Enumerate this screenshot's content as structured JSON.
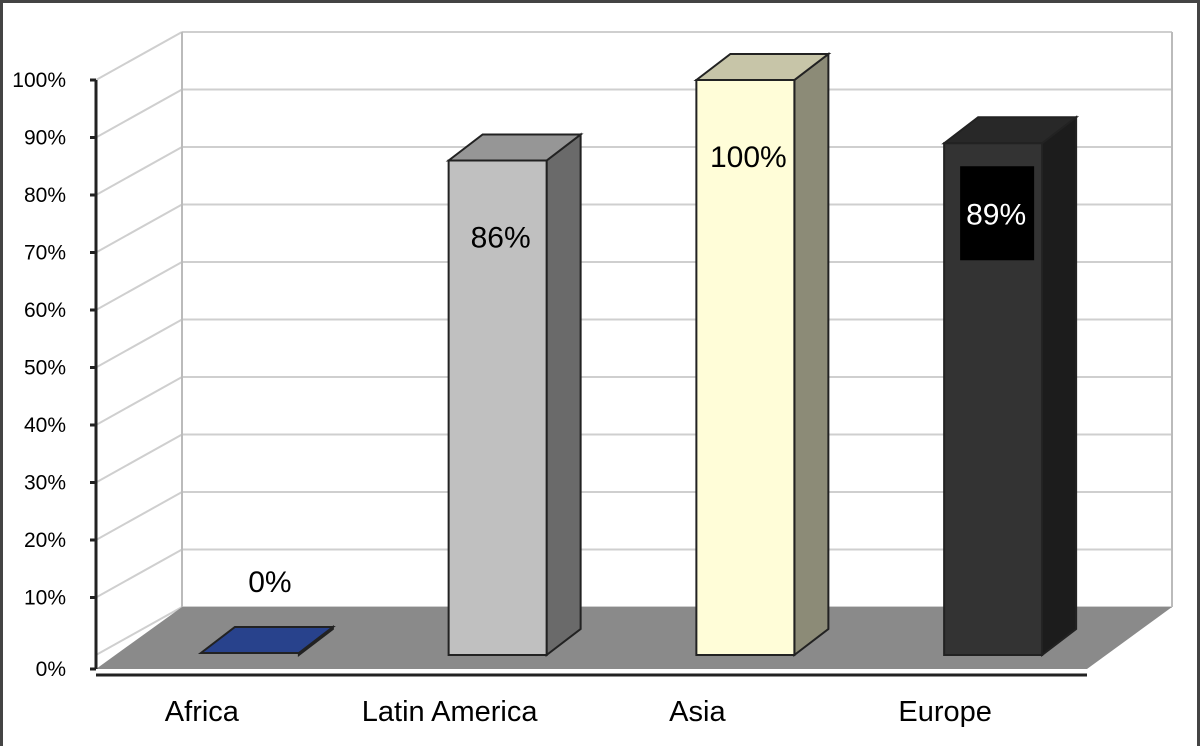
{
  "chart_data": {
    "type": "bar",
    "style": "3d",
    "categories": [
      "Africa",
      "Latin America",
      "Asia",
      "Europe"
    ],
    "values": [
      0,
      86,
      100,
      89
    ],
    "data_labels": [
      "0%",
      "86%",
      "100%",
      "89%"
    ],
    "y_ticks": [
      "0%",
      "10%",
      "20%",
      "30%",
      "40%",
      "50%",
      "60%",
      "70%",
      "80%",
      "90%",
      "100%"
    ],
    "ylim": [
      0,
      100
    ],
    "grid": true,
    "legend": "none",
    "colors": {
      "Africa": "#3355b3",
      "Latin America": "#c0c0c0",
      "Asia": "#fffdd8",
      "Europe": "#333333",
      "floor": "#8a8a8a",
      "gridline": "#cfcfcf"
    }
  }
}
